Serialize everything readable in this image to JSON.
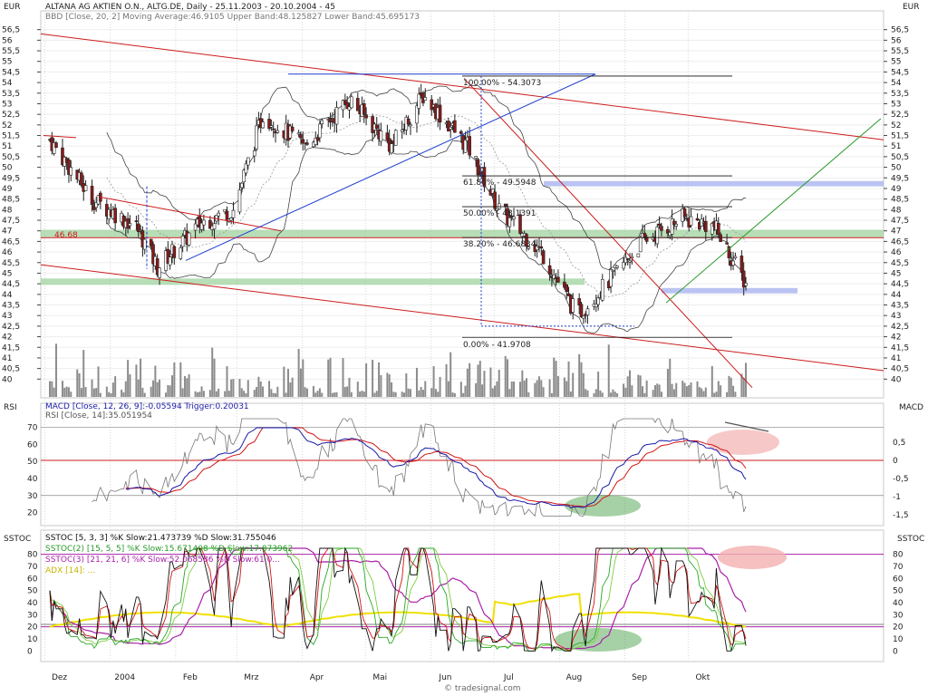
{
  "header": {
    "currency_left": "EUR",
    "currency_right": "EUR",
    "title": "ALTANA AG AKTIEN O.N., ALTG.DE, Daily - 25.11.2003 - 20.10.2004 - 45",
    "bbd": "BBD [Close, 20, 2] Moving Average:46.9105 Upper Band:48.125827 Lower Band:45.695173"
  },
  "panels": {
    "rsi_label": "RSI",
    "macd_label": "MACD",
    "sstoc_label_left": "SSTOC",
    "sstoc_label_right": "SSTOC",
    "macd_legend": "MACD [Close, 12, 26, 9]:-0.05594 Trigger:0.20031",
    "rsi_legend": "RSI [Close, 14]:35.051954",
    "sstoc1_legend": "SSTOC [5, 3, 3] %K Slow:21.473739 %D Slow:31.755046",
    "sstoc2_legend": "SSTOC(2) [15, 5, 5] %K Slow:15.671408 %D Slow:17.873962",
    "sstoc3_legend": "SSTOC(3) [21, 21, 6] %K Slow:52.068586 %D Slow:61.0...",
    "adx_legend": "ADX [14]: ..."
  },
  "fib_labels": [
    "100.00% - 54.3073",
    "61.80% - 49.5948",
    "50.00% - 48.1391",
    "38.20% - 46.6834",
    "0.00% - 41.9708"
  ],
  "level_tag": "46.68",
  "footer": "© tradesignal.com",
  "colors": {
    "candle_up": "#ffffff",
    "candle_down": "#8b1a1a",
    "band": "#444444",
    "macd": "#1a1aa8",
    "trigger": "#d21414",
    "rsi": "#777777",
    "sstoc_k": "#111111",
    "sstoc_d": "#d21414",
    "sstoc2_k": "#2aa82a",
    "sstoc2_d": "#80cc40",
    "sstoc3": "#aa22aa",
    "adx": "#f0e000",
    "trend_red": "#cc1b1b",
    "trend_blue": "#1f3fcf",
    "trend_green": "#2a9a2a",
    "zone_green": "#9fd39f",
    "zone_blue": "#aab4f0",
    "zone_pink": "#f4b0b0"
  },
  "chart_data": [
    {
      "type": "candlestick",
      "title": "ALTANA AG AKTIEN O.N., ALTG.DE, Daily - 25.11.2003 - 20.10.2004",
      "x_ticks": [
        "Dez",
        "2004",
        "Feb",
        "Mrz",
        "Apr",
        "Mai",
        "Jun",
        "Jul",
        "Aug",
        "Sep",
        "Okt"
      ],
      "y_ticks": [
        40,
        40.5,
        41,
        41.5,
        42,
        42.5,
        43,
        43.5,
        44,
        44.5,
        45,
        45.5,
        46,
        46.5,
        47,
        47.5,
        48,
        48.5,
        49,
        49.5,
        50,
        50.5,
        51,
        51.5,
        52,
        52.5,
        53,
        53.5,
        54,
        54.5,
        55,
        55.5,
        56,
        56.5
      ],
      "ylim": [
        39.5,
        56.7
      ],
      "series": [
        {
          "name": "Close",
          "x_dates": [
            "2003-11-25",
            "2003-12-15",
            "2004-01-05",
            "2004-01-15",
            "2004-02-05",
            "2004-02-20",
            "2004-03-05",
            "2004-03-25",
            "2004-04-15",
            "2004-05-05",
            "2004-05-20",
            "2004-06-10",
            "2004-06-25",
            "2004-07-15",
            "2004-08-01",
            "2004-08-15",
            "2004-09-01",
            "2004-09-20",
            "2004-10-05",
            "2004-10-20"
          ],
          "values": [
            51.3,
            48.5,
            47.2,
            45.3,
            47.4,
            48.0,
            52.5,
            51.0,
            53.2,
            51.0,
            53.4,
            51.0,
            48.0,
            46.0,
            43.0,
            44.5,
            46.5,
            47.6,
            47.2,
            44.5
          ]
        }
      ],
      "fibonacci": [
        {
          "level": "100.00%",
          "value": 54.3073
        },
        {
          "level": "61.80%",
          "value": 49.5948
        },
        {
          "level": "50.00%",
          "value": 48.1391
        },
        {
          "level": "38.20%",
          "value": 46.6834
        },
        {
          "level": "0.00%",
          "value": 41.9708
        }
      ],
      "horizontal_level": 46.68,
      "bollinger": {
        "moving_average": 46.9105,
        "upper_band": 48.125827,
        "lower_band": 45.695173
      }
    },
    {
      "type": "line",
      "title": "MACD / RSI",
      "y_ticks_left": [
        20,
        30,
        40,
        50,
        60,
        70
      ],
      "y_ticks_right": [
        "0,5",
        "0",
        "-0,5",
        "-1",
        "-1,5"
      ],
      "series": [
        {
          "name": "MACD",
          "last": -0.05594
        },
        {
          "name": "Trigger",
          "last": 0.20031
        },
        {
          "name": "RSI",
          "last": 35.051954
        }
      ]
    },
    {
      "type": "line",
      "title": "SSTOC",
      "y_ticks": [
        0,
        10,
        20,
        30,
        40,
        50,
        60,
        70,
        80
      ],
      "series": [
        {
          "name": "%K Slow",
          "last": 21.473739
        },
        {
          "name": "%D Slow",
          "last": 31.755046
        },
        {
          "name": "SSTOC(2) %K Slow",
          "last": 15.671408
        },
        {
          "name": "SSTOC(2) %D Slow",
          "last": 17.873962
        },
        {
          "name": "SSTOC(3) %K Slow",
          "last": 52.068586
        }
      ]
    }
  ]
}
